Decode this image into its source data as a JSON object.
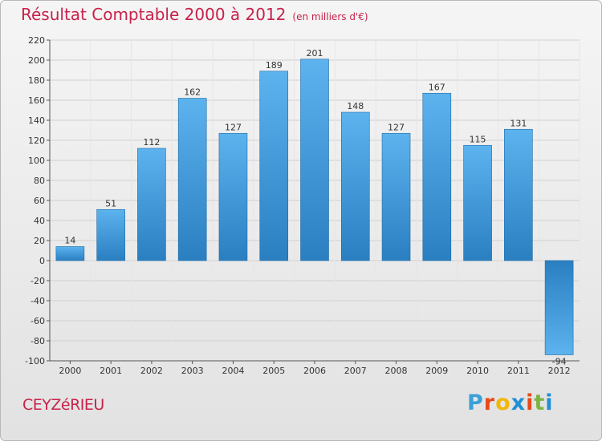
{
  "header": {
    "title": "Résultat Comptable 2000 à 2012",
    "unit": "(en milliers d'€)"
  },
  "footer": {
    "city": "CEYZéRIEU",
    "brand_letters": [
      "P",
      "r",
      "o",
      "x",
      "i",
      "t",
      "i"
    ],
    "brand_colors": [
      "#3aa0d8",
      "#e64a19",
      "#f2b705",
      "#1f8fd6",
      "#e64a19",
      "#7cb342",
      "#1f8fd6"
    ]
  },
  "chart_data": {
    "type": "bar",
    "title": "Résultat Comptable 2000 à 2012",
    "subtitle": "(en milliers d'€)",
    "xlabel": "",
    "ylabel": "",
    "categories": [
      "2000",
      "2001",
      "2002",
      "2003",
      "2004",
      "2005",
      "2006",
      "2007",
      "2008",
      "2009",
      "2010",
      "2011",
      "2012"
    ],
    "values": [
      14,
      51,
      112,
      162,
      127,
      189,
      201,
      148,
      127,
      167,
      115,
      131,
      -94
    ],
    "ylim": [
      -100,
      220
    ],
    "yticks": [
      -100,
      -80,
      -60,
      -40,
      -20,
      0,
      20,
      40,
      60,
      80,
      100,
      120,
      140,
      160,
      180,
      200,
      220
    ],
    "grid": true,
    "colors": {
      "bar_dark": "#2a7fc1",
      "bar_light": "#5cb3ee",
      "grid": "#d0d0d0",
      "axis": "#555555",
      "label": "#333333"
    }
  }
}
